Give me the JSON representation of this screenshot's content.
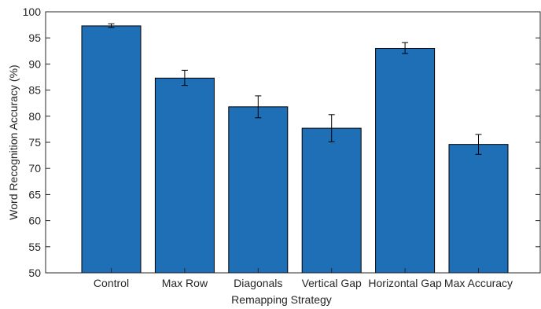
{
  "chart_data": {
    "type": "bar",
    "title": "",
    "xlabel": "Remapping Strategy",
    "ylabel": "Word Recognition Accuracy (%)",
    "ylim": [
      50,
      100
    ],
    "yticks": [
      50,
      55,
      60,
      65,
      70,
      75,
      80,
      85,
      90,
      95,
      100
    ],
    "grid": false,
    "box": true,
    "bar_color": "#1f6fb7",
    "categories": [
      "Control",
      "Max Row",
      "Diagonals",
      "Vertical Gap",
      "Horizontal Gap",
      "Max Accuracy"
    ],
    "values": [
      97.3,
      87.3,
      81.8,
      77.7,
      93.0,
      74.6
    ],
    "error": [
      {
        "low": 97.0,
        "high": 97.7
      },
      {
        "low": 85.9,
        "high": 88.8
      },
      {
        "low": 79.7,
        "high": 83.9
      },
      {
        "low": 75.1,
        "high": 80.3
      },
      {
        "low": 92.0,
        "high": 94.1
      },
      {
        "low": 72.7,
        "high": 76.5
      }
    ]
  }
}
